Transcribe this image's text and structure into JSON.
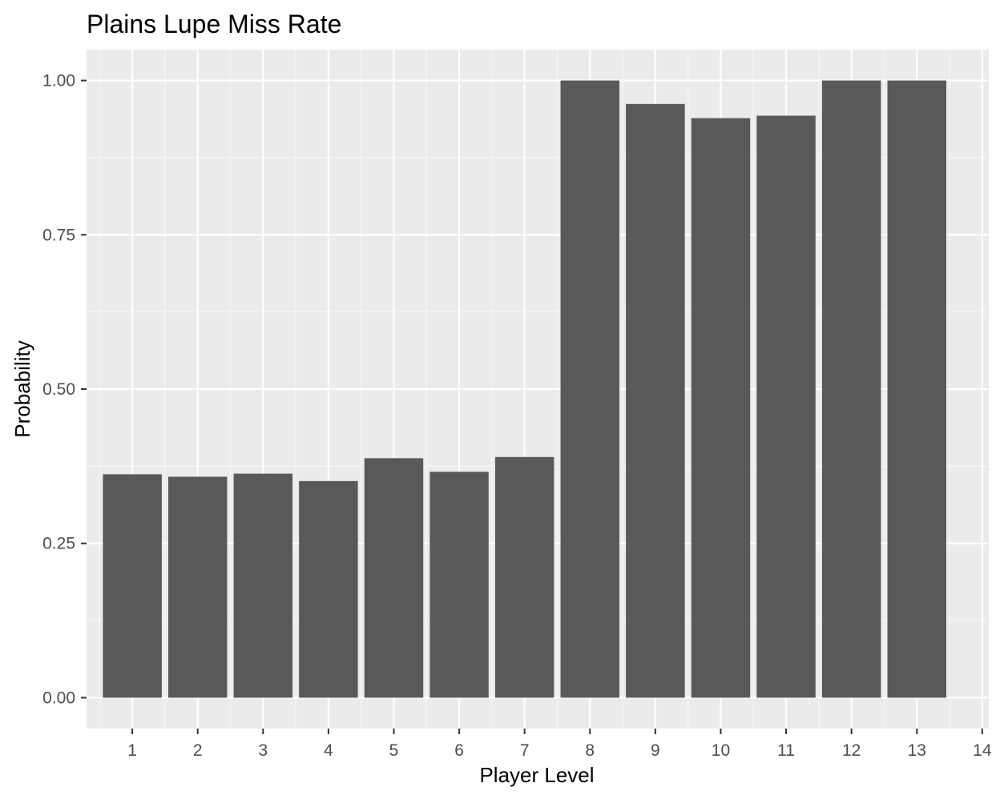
{
  "chart_data": {
    "type": "bar",
    "title": "Plains Lupe Miss Rate",
    "xlabel": "Player Level",
    "ylabel": "Probability",
    "categories": [
      1,
      2,
      3,
      4,
      5,
      6,
      7,
      8,
      9,
      10,
      11,
      12,
      13
    ],
    "values": [
      0.362,
      0.358,
      0.363,
      0.351,
      0.388,
      0.366,
      0.39,
      1.0,
      0.962,
      0.939,
      0.943,
      1.0,
      1.0
    ],
    "x_ticks": [
      "1",
      "2",
      "3",
      "4",
      "5",
      "6",
      "7",
      "8",
      "9",
      "10",
      "11",
      "12",
      "13",
      "14"
    ],
    "y_ticks": [
      "0.00",
      "0.25",
      "0.50",
      "0.75",
      "1.00"
    ],
    "y_tick_values": [
      0,
      0.25,
      0.5,
      0.75,
      1.0
    ],
    "xlim": [
      0.3,
      14.1
    ],
    "ylim": [
      -0.05,
      1.05
    ],
    "grid": true,
    "colors": {
      "bar": "#595959",
      "panel": "#ebebeb",
      "grid_major": "#ffffff",
      "grid_minor": "#f5f5f5",
      "tick": "#333333"
    }
  }
}
